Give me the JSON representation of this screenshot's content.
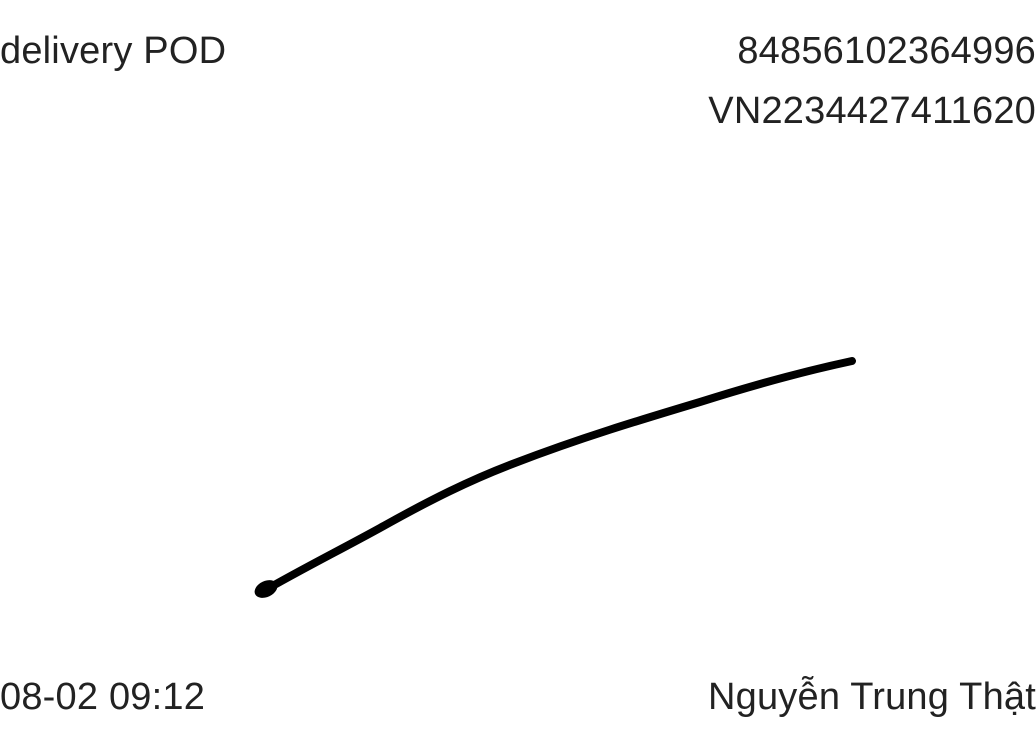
{
  "header": {
    "label": "delivery POD",
    "tracking_number": "84856102364996",
    "reference_code": "VN2234427411620"
  },
  "footer": {
    "timestamp": "08-02 09:12",
    "recipient_name": "Nguyễn Trung Thật"
  },
  "signature": {
    "stroke_color": "#000000"
  }
}
